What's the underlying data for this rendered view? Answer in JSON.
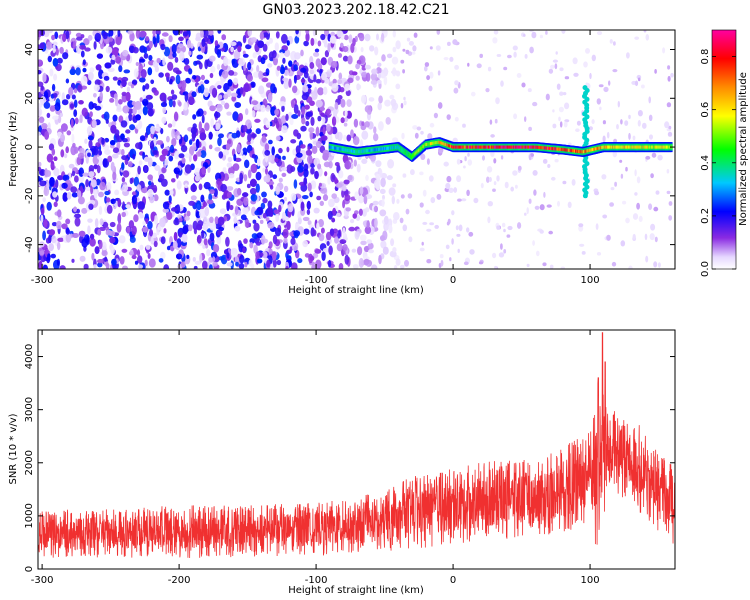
{
  "figure": {
    "title": "GN03.2023.202.18.42.C21"
  },
  "chart_data": [
    {
      "type": "heatmap",
      "title": "GN03.2023.202.18.42.C21",
      "xlabel": "Height of straight line (km)",
      "ylabel": "Frequency (Hz)",
      "xlim": [
        -303,
        162
      ],
      "ylim": [
        -50,
        48
      ],
      "xticks": [
        -300,
        -200,
        -100,
        0,
        100
      ],
      "xtick_labels": [
        "-300",
        "-200",
        "-100",
        "0",
        "100"
      ],
      "yticks": [
        -40,
        -20,
        0,
        20,
        40
      ],
      "ytick_labels": [
        "-40",
        "-20",
        "0",
        "20",
        "40"
      ],
      "grid": false,
      "colorbar": {
        "label": "Normalized spectral amplitude",
        "range": [
          0,
          0.9
        ],
        "ticks": [
          0.0,
          0.2,
          0.4,
          0.6,
          0.8
        ],
        "tick_labels": [
          "0.0",
          "0.2",
          "0.4",
          "0.6",
          "0.8"
        ],
        "colormap": "rainbow (white-violet-blue-cyan-green-yellow-orange-red-magenta)"
      },
      "features": {
        "noise_region_x": [
          -303,
          -40
        ],
        "noise_amplitude": 0.25,
        "sparse_region_x": [
          -40,
          162
        ],
        "sparse_amplitude": 0.05,
        "ridge": {
          "frequency_hz": 0,
          "points": [
            {
              "x": -90,
              "y": 0,
              "amp": 0.3
            },
            {
              "x": -70,
              "y": -2,
              "amp": 0.35
            },
            {
              "x": -55,
              "y": -1,
              "amp": 0.3
            },
            {
              "x": -40,
              "y": 0,
              "amp": 0.35
            },
            {
              "x": -30,
              "y": -4,
              "amp": 0.45
            },
            {
              "x": -20,
              "y": 1,
              "amp": 0.55
            },
            {
              "x": -10,
              "y": 2,
              "amp": 0.6
            },
            {
              "x": 0,
              "y": 0,
              "amp": 0.75
            },
            {
              "x": 20,
              "y": 0,
              "amp": 0.8
            },
            {
              "x": 40,
              "y": 0,
              "amp": 0.85
            },
            {
              "x": 60,
              "y": 0,
              "amp": 0.8
            },
            {
              "x": 80,
              "y": -1,
              "amp": 0.75
            },
            {
              "x": 95,
              "y": -2,
              "amp": 0.7
            },
            {
              "x": 110,
              "y": 0,
              "amp": 0.65
            },
            {
              "x": 130,
              "y": 0,
              "amp": 0.6
            },
            {
              "x": 160,
              "y": 0,
              "amp": 0.55
            }
          ]
        },
        "vertical_spike": {
          "x": 97,
          "y_range": [
            -20,
            25
          ],
          "amp": 0.35
        }
      }
    },
    {
      "type": "line",
      "xlabel": "Height of straight line (km)",
      "ylabel": "SNR (10 * v/v)",
      "xlim": [
        -303,
        162
      ],
      "ylim": [
        0,
        4500
      ],
      "xticks": [
        -300,
        -200,
        -100,
        0,
        100
      ],
      "xtick_labels": [
        "-300",
        "-200",
        "-100",
        "0",
        "100"
      ],
      "yticks": [
        0,
        1000,
        2000,
        3000,
        4000
      ],
      "ytick_labels": [
        "0",
        "1000",
        "2000",
        "3000",
        "4000"
      ],
      "grid": false,
      "series": [
        {
          "color": "#f03030",
          "envelope": [
            {
              "x": -303,
              "low": 180,
              "high": 1100
            },
            {
              "x": -250,
              "low": 220,
              "high": 1150
            },
            {
              "x": -200,
              "low": 200,
              "high": 1200
            },
            {
              "x": -150,
              "low": 230,
              "high": 1200
            },
            {
              "x": -100,
              "low": 250,
              "high": 1250
            },
            {
              "x": -50,
              "low": 300,
              "high": 1450
            },
            {
              "x": -30,
              "low": 350,
              "high": 1750
            },
            {
              "x": 0,
              "low": 450,
              "high": 1900
            },
            {
              "x": 30,
              "low": 550,
              "high": 2050
            },
            {
              "x": 60,
              "low": 600,
              "high": 2100
            },
            {
              "x": 90,
              "low": 700,
              "high": 2450
            },
            {
              "x": 100,
              "low": 900,
              "high": 2700
            },
            {
              "x": 104,
              "low": 300,
              "high": 3000
            },
            {
              "x": 107,
              "low": 200,
              "high": 4000
            },
            {
              "x": 110,
              "low": 1000,
              "high": 3200
            },
            {
              "x": 120,
              "low": 1300,
              "high": 2950
            },
            {
              "x": 135,
              "low": 1100,
              "high": 2800
            },
            {
              "x": 150,
              "low": 700,
              "high": 2200
            },
            {
              "x": 162,
              "low": 400,
              "high": 1900
            }
          ],
          "peaks": [
            {
              "x": 109,
              "y": 4450
            },
            {
              "x": 106,
              "y": 3600
            },
            {
              "x": 111,
              "y": 3900
            }
          ]
        }
      ]
    }
  ]
}
